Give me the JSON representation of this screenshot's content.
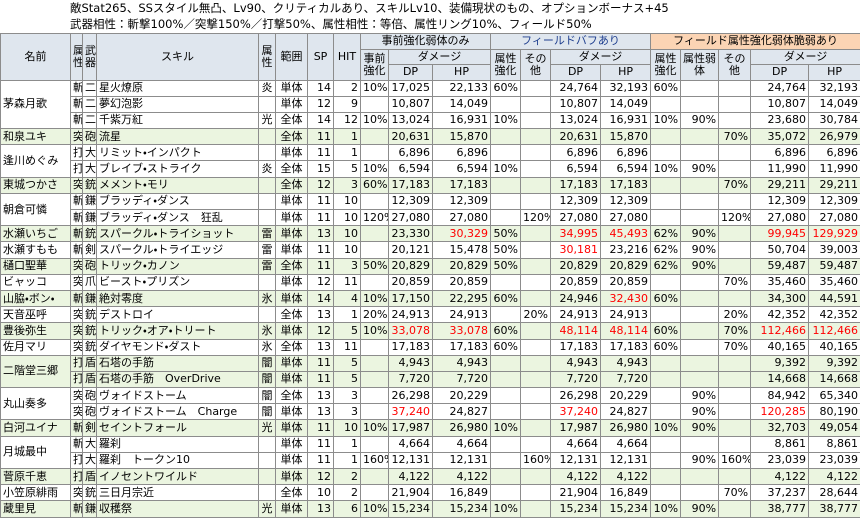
{
  "header": {
    "lines": [
      "敵Stat265、SSスタイル無凸、Lv90、クリティカルあり、スキルLv10、装備現状のもの、オプションボーナス+45",
      "武器相性：斬撃100%／突撃150%／打撃50%、属性相性：等倍、属性リング10%、フィールド50%"
    ]
  },
  "table": {
    "group_headers": [
      "事前強化弱体のみ",
      "フィールドバフあり",
      "フィールド属性強化弱体脆弱あり"
    ],
    "columns": [
      "名前",
      "属性",
      "武器",
      "スキル",
      "属性",
      "範囲",
      "SP",
      "HIT",
      "事前強化",
      "ダメージ",
      "DP",
      "HP",
      "属性強化",
      "その他",
      "ダメージ",
      "DP",
      "HP",
      "属性強化",
      "属性弱体",
      "その他",
      "ダメージ",
      "DP",
      "HP"
    ],
    "characters": [
      {
        "name": "茅森月歌",
        "rows": [
          [
            "斬",
            "二",
            "星火燎原",
            "炎",
            "単体",
            14,
            2,
            "10%",
            "17,025",
            "22,133",
            "60%",
            null,
            "24,764",
            "32,193",
            "60%",
            null,
            null,
            "24,764",
            "32,193"
          ],
          [
            "斬",
            "二",
            "夢幻泡影",
            null,
            "単体",
            12,
            9,
            null,
            "10,807",
            "14,049",
            null,
            null,
            "10,807",
            "14,049",
            null,
            null,
            null,
            "10,807",
            "14,049"
          ],
          [
            "斬",
            "二",
            "千紫万紅",
            "光",
            "全体",
            14,
            12,
            "10%",
            "13,024",
            "16,931",
            "10%",
            null,
            "13,024",
            "16,931",
            "10%",
            "90%",
            null,
            "23,680",
            "30,784"
          ]
        ]
      },
      {
        "name": "和泉ユキ",
        "rows": [
          [
            "突",
            "砲",
            "流星",
            null,
            "全体",
            11,
            1,
            null,
            "20,631",
            "15,870",
            null,
            null,
            "20,631",
            "15,870",
            null,
            null,
            "70%",
            "35,072",
            "26,979"
          ]
        ]
      },
      {
        "name": "逢川めぐみ",
        "rows": [
          [
            "打",
            "大",
            "リミット・インパクト",
            null,
            "単体",
            11,
            1,
            null,
            "6,896",
            "6,896",
            null,
            null,
            "6,896",
            "6,896",
            null,
            null,
            null,
            "6,896",
            "6,896"
          ],
          [
            "打",
            "大",
            "ブレイブ・ストライク",
            "炎",
            "全体",
            15,
            5,
            "10%",
            "6,594",
            "6,594",
            "10%",
            null,
            "6,594",
            "6,594",
            "10%",
            "90%",
            null,
            "11,990",
            "11,990"
          ]
        ]
      },
      {
        "name": "東城つかさ",
        "rows": [
          [
            "突",
            "銃",
            "メメント・モリ",
            null,
            "全体",
            12,
            3,
            "60%",
            "17,183",
            "17,183",
            null,
            null,
            "17,183",
            "17,183",
            null,
            null,
            "70%",
            "29,211",
            "29,211"
          ]
        ]
      },
      {
        "name": "朝倉可憐",
        "rows": [
          [
            "斬",
            "鎌",
            "ブラッディ・ダンス",
            null,
            "単体",
            11,
            10,
            null,
            "12,309",
            "12,309",
            null,
            null,
            "12,309",
            "12,309",
            null,
            null,
            null,
            "12,309",
            "12,309"
          ],
          [
            "斬",
            "鎌",
            "ブラッディ・ダンス　狂乱",
            null,
            "単体",
            11,
            10,
            "120%",
            "27,080",
            "27,080",
            null,
            "120%",
            "27,080",
            "27,080",
            null,
            null,
            "120%",
            "27,080",
            "27,080"
          ]
        ]
      },
      {
        "name": "水瀬いちご",
        "rows": [
          [
            "斬",
            "銃",
            "スパークル・トライショット",
            "雷",
            "単体",
            13,
            10,
            null,
            "23,330",
            {
              "text": "30,329",
              "color": "#ff0000"
            },
            "50%",
            null,
            {
              "text": "34,995",
              "color": "#ff0000"
            },
            {
              "text": "45,493",
              "color": "#ff0000"
            },
            "62%",
            "90%",
            null,
            {
              "text": "99,945",
              "color": "#ff0000"
            },
            {
              "text": "129,929",
              "color": "#ff0000"
            }
          ]
        ]
      },
      {
        "name": "水瀬すもも",
        "rows": [
          [
            "斬",
            "剣",
            "スパークル・トライエッジ",
            "雷",
            "単体",
            11,
            10,
            null,
            "20,121",
            "15,478",
            "50%",
            null,
            {
              "text": "30,181",
              "color": "#ff0000"
            },
            "23,216",
            "62%",
            "90%",
            null,
            "50,704",
            "39,003"
          ]
        ]
      },
      {
        "name": "樋口聖華",
        "rows": [
          [
            "突",
            "砲",
            "トリック・カノン",
            "雷",
            "全体",
            11,
            3,
            "50%",
            "20,829",
            "20,829",
            "50%",
            null,
            "20,829",
            "20,829",
            "62%",
            "90%",
            null,
            "59,487",
            "59,487"
          ]
        ]
      },
      {
        "name": "ビャッコ",
        "rows": [
          [
            "突",
            "爪",
            "ビースト・プリズン",
            null,
            "単体",
            12,
            11,
            null,
            "20,859",
            "20,859",
            null,
            null,
            "20,859",
            "20,859",
            null,
            null,
            "70%",
            "35,460",
            "35,460"
          ]
        ]
      },
      {
        "name": "山脇・ボン・",
        "rows": [
          [
            "斬",
            "鎌",
            "絶対零度",
            "氷",
            "単体",
            14,
            4,
            "10%",
            "17,150",
            "22,295",
            "60%",
            null,
            "24,946",
            {
              "text": "32,430",
              "color": "#ff0000"
            },
            "60%",
            null,
            null,
            "34,300",
            "44,591"
          ]
        ]
      },
      {
        "name": "天音巫呼",
        "rows": [
          [
            "突",
            "銃",
            "デストロイ",
            null,
            "全体",
            13,
            1,
            "20%",
            "24,913",
            "24,913",
            null,
            "20%",
            "24,913",
            "24,913",
            null,
            null,
            "20%",
            "42,352",
            "42,352"
          ]
        ]
      },
      {
        "name": "豊後弥生",
        "rows": [
          [
            "突",
            "銃",
            "トリック・オア・トリート",
            "氷",
            "単体",
            12,
            5,
            "10%",
            {
              "text": "33,078",
              "color": "#ff0000"
            },
            {
              "text": "33,078",
              "color": "#ff0000"
            },
            "60%",
            null,
            {
              "text": "48,114",
              "color": "#ff0000"
            },
            {
              "text": "48,114",
              "color": "#ff0000"
            },
            "60%",
            null,
            "70%",
            {
              "text": "112,466",
              "color": "#ff0000"
            },
            {
              "text": "112,466",
              "color": "#ff0000"
            }
          ]
        ]
      },
      {
        "name": "佐月マリ",
        "rows": [
          [
            "突",
            "銃",
            "ダイヤモンド・ダスト",
            "氷",
            "全体",
            13,
            11,
            null,
            "17,183",
            "17,183",
            "60%",
            null,
            "17,183",
            "17,183",
            "60%",
            null,
            "70%",
            "40,165",
            "40,165"
          ]
        ]
      },
      {
        "name": "二階堂三郷",
        "rows": [
          [
            "打",
            "盾",
            "石塔の手筋",
            "闇",
            "単体",
            11,
            5,
            null,
            "4,943",
            "4,943",
            null,
            null,
            "4,943",
            "4,943",
            null,
            null,
            null,
            "9,392",
            "9,392"
          ],
          [
            "打",
            "盾",
            "石塔の手筋　OverDrive",
            "闇",
            "単体",
            11,
            5,
            null,
            "7,720",
            "7,720",
            null,
            null,
            "7,720",
            "7,720",
            null,
            null,
            null,
            "14,668",
            "14,668"
          ]
        ]
      },
      {
        "name": "丸山奏多",
        "rows": [
          [
            "突",
            "砲",
            "ヴォイドストーム",
            "闇",
            "全体",
            13,
            3,
            null,
            "26,298",
            "20,229",
            null,
            null,
            "26,298",
            "20,229",
            null,
            "90%",
            null,
            "84,942",
            "65,340"
          ],
          [
            "突",
            "砲",
            "ヴォイドストーム　Charge",
            "闇",
            "単体",
            13,
            3,
            null,
            {
              "text": "37,240",
              "color": "#ff0000"
            },
            "24,827",
            null,
            null,
            {
              "text": "37,240",
              "color": "#ff0000"
            },
            "24,827",
            null,
            "90%",
            null,
            {
              "text": "120,285",
              "color": "#ff0000"
            },
            "80,190"
          ]
        ]
      },
      {
        "name": "白河ユイナ",
        "rows": [
          [
            "斬",
            "剣",
            "セイントフォール",
            "光",
            "単体",
            11,
            10,
            "10%",
            "17,987",
            "26,980",
            "10%",
            null,
            "17,987",
            "26,980",
            "10%",
            "90%",
            null,
            "32,703",
            "49,054"
          ]
        ]
      },
      {
        "name": "月城最中",
        "rows": [
          [
            "斬",
            "大",
            "羅刹",
            null,
            "単体",
            11,
            1,
            null,
            "4,664",
            "4,664",
            null,
            null,
            "4,664",
            "4,664",
            null,
            null,
            null,
            "8,861",
            "8,861"
          ],
          [
            "打",
            "大",
            "羅刹　トークン10",
            null,
            "単体",
            11,
            1,
            "160%",
            "12,131",
            "12,131",
            null,
            "160%",
            "12,131",
            "12,131",
            null,
            "90%",
            "160%",
            "23,039",
            "23,039"
          ]
        ]
      },
      {
        "name": "菅原千恵",
        "rows": [
          [
            "打",
            "盾",
            "イノセントワイルド",
            null,
            "単体",
            12,
            2,
            null,
            "4,122",
            "4,122",
            null,
            null,
            "4,122",
            "4,122",
            null,
            null,
            null,
            "4,122",
            "4,122"
          ]
        ]
      },
      {
        "name": "小笠原緋雨",
        "rows": [
          [
            "突",
            "銃",
            "三日月宗近",
            null,
            "全体",
            10,
            2,
            null,
            "21,904",
            "16,849",
            null,
            null,
            "21,904",
            "16,849",
            null,
            null,
            "70%",
            "37,237",
            "28,644"
          ]
        ]
      },
      {
        "name": "蔵里見",
        "rows": [
          [
            "斬",
            "鎌",
            "収穫祭",
            "光",
            "単体",
            13,
            6,
            "10%",
            "15,234",
            "15,234",
            "10%",
            null,
            "15,234",
            "15,234",
            "10%",
            "90%",
            null,
            "38,777",
            "38,777"
          ]
        ]
      }
    ]
  }
}
